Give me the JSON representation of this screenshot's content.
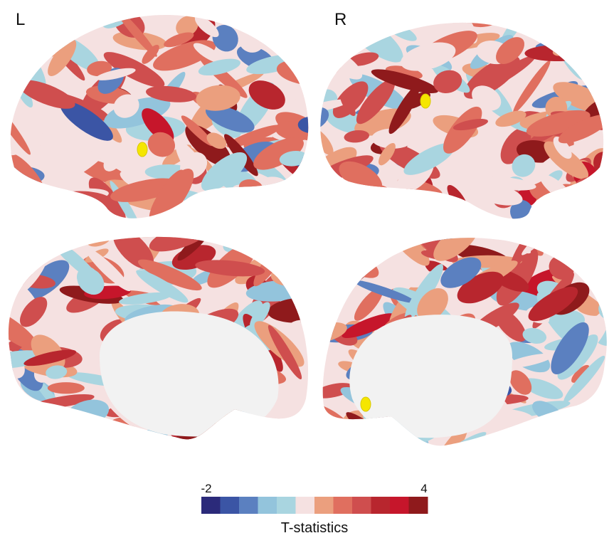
{
  "hemisphere_labels": {
    "left": "L",
    "right": "R"
  },
  "colorbar": {
    "min_label": "-2",
    "max_label": "4",
    "title": "T-statistics",
    "colors": [
      "#2b2a7a",
      "#3b55a5",
      "#5b80c0",
      "#93c4dc",
      "#a9d5e0",
      "#f5e1e1",
      "#eb9f7e",
      "#e06f5f",
      "#cf4e4e",
      "#b8262e",
      "#c6162b",
      "#8f1a1c"
    ]
  }
}
